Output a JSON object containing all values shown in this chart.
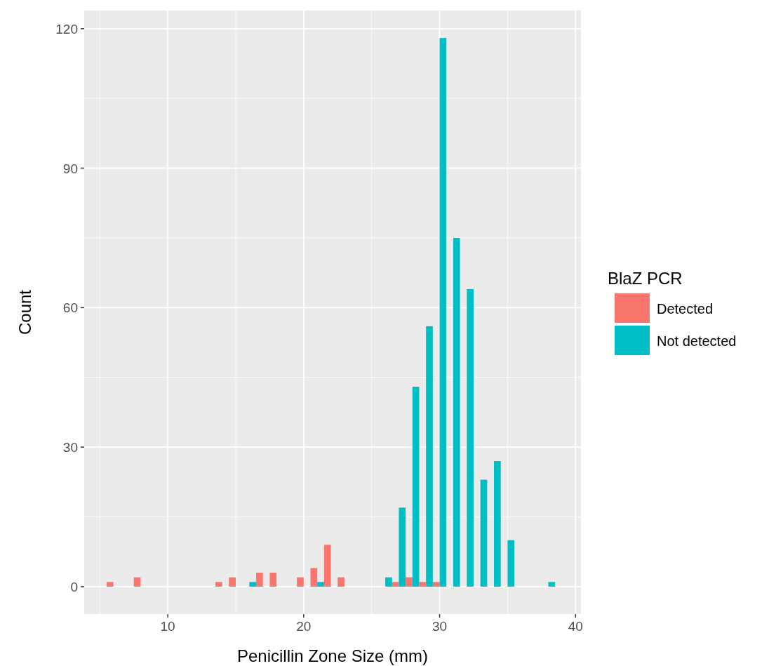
{
  "chart_data": {
    "type": "histogram",
    "xlabel": "Penicillin Zone Size (mm)",
    "ylabel": "Count",
    "legend_title": "BlaZ PCR",
    "bins": [
      5.5,
      6.5,
      7.5,
      8.5,
      9.5,
      10.5,
      11.5,
      12.5,
      13.5,
      14.5,
      15.5,
      16.5,
      17.5,
      18.5,
      19.5,
      20.5,
      21.5,
      22.5,
      23.5,
      24.5,
      25.5,
      26.5,
      27.5,
      28.5,
      29.5,
      30.5,
      31.5,
      32.5,
      33.5,
      34.5,
      35.5,
      36.5,
      37.5,
      38.5
    ],
    "series": [
      {
        "name": "Detected",
        "color": "#f8766d",
        "values": [
          1,
          0,
          2,
          0,
          0,
          0,
          0,
          0,
          1,
          2,
          0,
          3,
          3,
          0,
          2,
          4,
          9,
          2,
          0,
          0,
          0,
          1,
          2,
          1,
          1,
          0,
          0,
          0,
          0,
          0,
          0,
          0,
          0
        ]
      },
      {
        "name": "Not detected",
        "color": "#00bfc4",
        "values": [
          0,
          0,
          0,
          0,
          0,
          0,
          0,
          0,
          0,
          0,
          1,
          0,
          0,
          0,
          0,
          1,
          0,
          0,
          0,
          0,
          2,
          17,
          43,
          56,
          118,
          75,
          64,
          23,
          27,
          10,
          0,
          0,
          1
        ]
      }
    ],
    "xlim": [
      3.85,
      40.4
    ],
    "xticks": [
      10,
      20,
      30,
      40
    ],
    "ylim": [
      -5.9,
      123.9
    ],
    "yticks": [
      0,
      30,
      60,
      90,
      120
    ],
    "grid": true,
    "legend": "right"
  }
}
